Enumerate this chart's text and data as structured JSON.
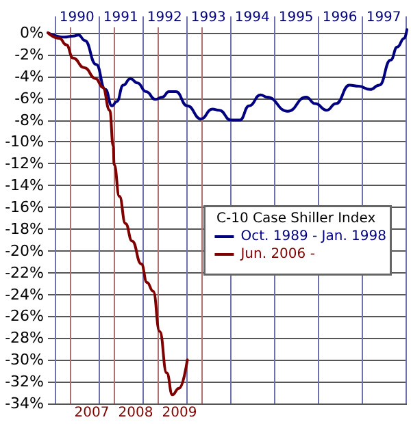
{
  "chart_data": {
    "type": "line",
    "legend_title": "C-10 Case Shiller Index",
    "legend": "right",
    "grid": true,
    "marker": "none",
    "line_style": "solid",
    "xlim": [
      2006.5,
      2014.69
    ],
    "xticks": [
      {
        "value": 2007,
        "label": null
      },
      {
        "value": 2007.5,
        "label": "2007"
      },
      {
        "value": 2008,
        "label": null
      },
      {
        "value": 2008.5,
        "label": "2008"
      },
      {
        "value": 2009,
        "label": null
      },
      {
        "value": 2009.5,
        "label": "2009"
      },
      {
        "value": 2010,
        "label": null
      }
    ],
    "x2lim": [
      1989.84,
      1998.03
    ],
    "x2ticks": [
      {
        "value": 1990,
        "label": null
      },
      {
        "value": 1990.5,
        "label": "1990"
      },
      {
        "value": 1991,
        "label": null
      },
      {
        "value": 1991.5,
        "label": "1991"
      },
      {
        "value": 1992,
        "label": null
      },
      {
        "value": 1992.5,
        "label": "1992"
      },
      {
        "value": 1993,
        "label": null
      },
      {
        "value": 1993.5,
        "label": "1993"
      },
      {
        "value": 1994,
        "label": null
      },
      {
        "value": 1994.5,
        "label": "1994"
      },
      {
        "value": 1995,
        "label": null
      },
      {
        "value": 1995.5,
        "label": "1995"
      },
      {
        "value": 1996,
        "label": null
      },
      {
        "value": 1996.5,
        "label": "1996"
      },
      {
        "value": 1997,
        "label": null
      },
      {
        "value": 1997.5,
        "label": "1997"
      },
      {
        "value": 1998,
        "label": null
      }
    ],
    "ylim": [
      -34,
      0.5
    ],
    "yticks": [
      {
        "value": 0,
        "label": "0%"
      },
      {
        "value": -2,
        "label": "-2%"
      },
      {
        "value": -4,
        "label": "-4%"
      },
      {
        "value": -6,
        "label": "-6%"
      },
      {
        "value": -8,
        "label": "-8%"
      },
      {
        "value": -10,
        "label": "-10%"
      },
      {
        "value": -12,
        "label": "-12%"
      },
      {
        "value": -14,
        "label": "-14%"
      },
      {
        "value": -16,
        "label": "-16%"
      },
      {
        "value": -18,
        "label": "-18%"
      },
      {
        "value": -20,
        "label": "-20%"
      },
      {
        "value": -22,
        "label": "-22%"
      },
      {
        "value": -24,
        "label": "-24%"
      },
      {
        "value": -26,
        "label": "-26%"
      },
      {
        "value": -28,
        "label": "-28%"
      },
      {
        "value": -30,
        "label": "-30%"
      },
      {
        "value": -32,
        "label": "-32%"
      },
      {
        "value": -34,
        "label": "-34%"
      }
    ],
    "series": [
      {
        "name": "Oct. 1989 - Jan. 1998",
        "color": "#000080",
        "axis": "x2",
        "x": [
          1989.84,
          1990.21,
          1990.42,
          1990.54,
          1990.68,
          1990.94,
          1991.15,
          1991.3,
          1991.41,
          1991.56,
          1991.72,
          1991.88,
          1992.08,
          1992.29,
          1992.45,
          1992.6,
          1992.76,
          1993.02,
          1993.33,
          1993.59,
          1993.75,
          1994.01,
          1994.22,
          1994.43,
          1994.69,
          1994.84,
          1995.31,
          1995.73,
          1995.94,
          1996.2,
          1996.41,
          1996.72,
          1996.93,
          1997.19,
          1997.4,
          1997.66,
          1997.81,
          1997.97,
          1998.03
        ],
        "values": [
          0,
          -0.4,
          -0.3,
          -0.2,
          -0.7,
          -2.9,
          -5.2,
          -6.7,
          -6.3,
          -4.8,
          -4.2,
          -4.6,
          -5.4,
          -6.1,
          -5.9,
          -5.4,
          -5.4,
          -6.7,
          -7.9,
          -7,
          -7.1,
          -8,
          -8,
          -6.7,
          -5.7,
          -5.9,
          -7.2,
          -5.9,
          -6.5,
          -7.1,
          -6.5,
          -4.8,
          -4.9,
          -5.2,
          -4.8,
          -2.5,
          -1.3,
          -0.5,
          0.3
        ]
      },
      {
        "name": "Jun. 2006 -",
        "color": "#800000",
        "x": [
          2006.5,
          2006.76,
          2006.92,
          2007.07,
          2007.33,
          2007.59,
          2007.75,
          2007.91,
          2007.99,
          2008.01,
          2008.13,
          2008.27,
          2008.42,
          2008.63,
          2008.76,
          2008.9,
          2009.05,
          2009.21,
          2009.34,
          2009.49,
          2009.68
        ],
        "values": [
          0,
          -0.5,
          -1.1,
          -2.3,
          -3.2,
          -4.2,
          -5,
          -7.1,
          -10.4,
          -12.1,
          -15,
          -17.5,
          -19.1,
          -21.2,
          -22.9,
          -23.7,
          -27.4,
          -31.2,
          -33.2,
          -32.6,
          -30
        ]
      }
    ]
  }
}
